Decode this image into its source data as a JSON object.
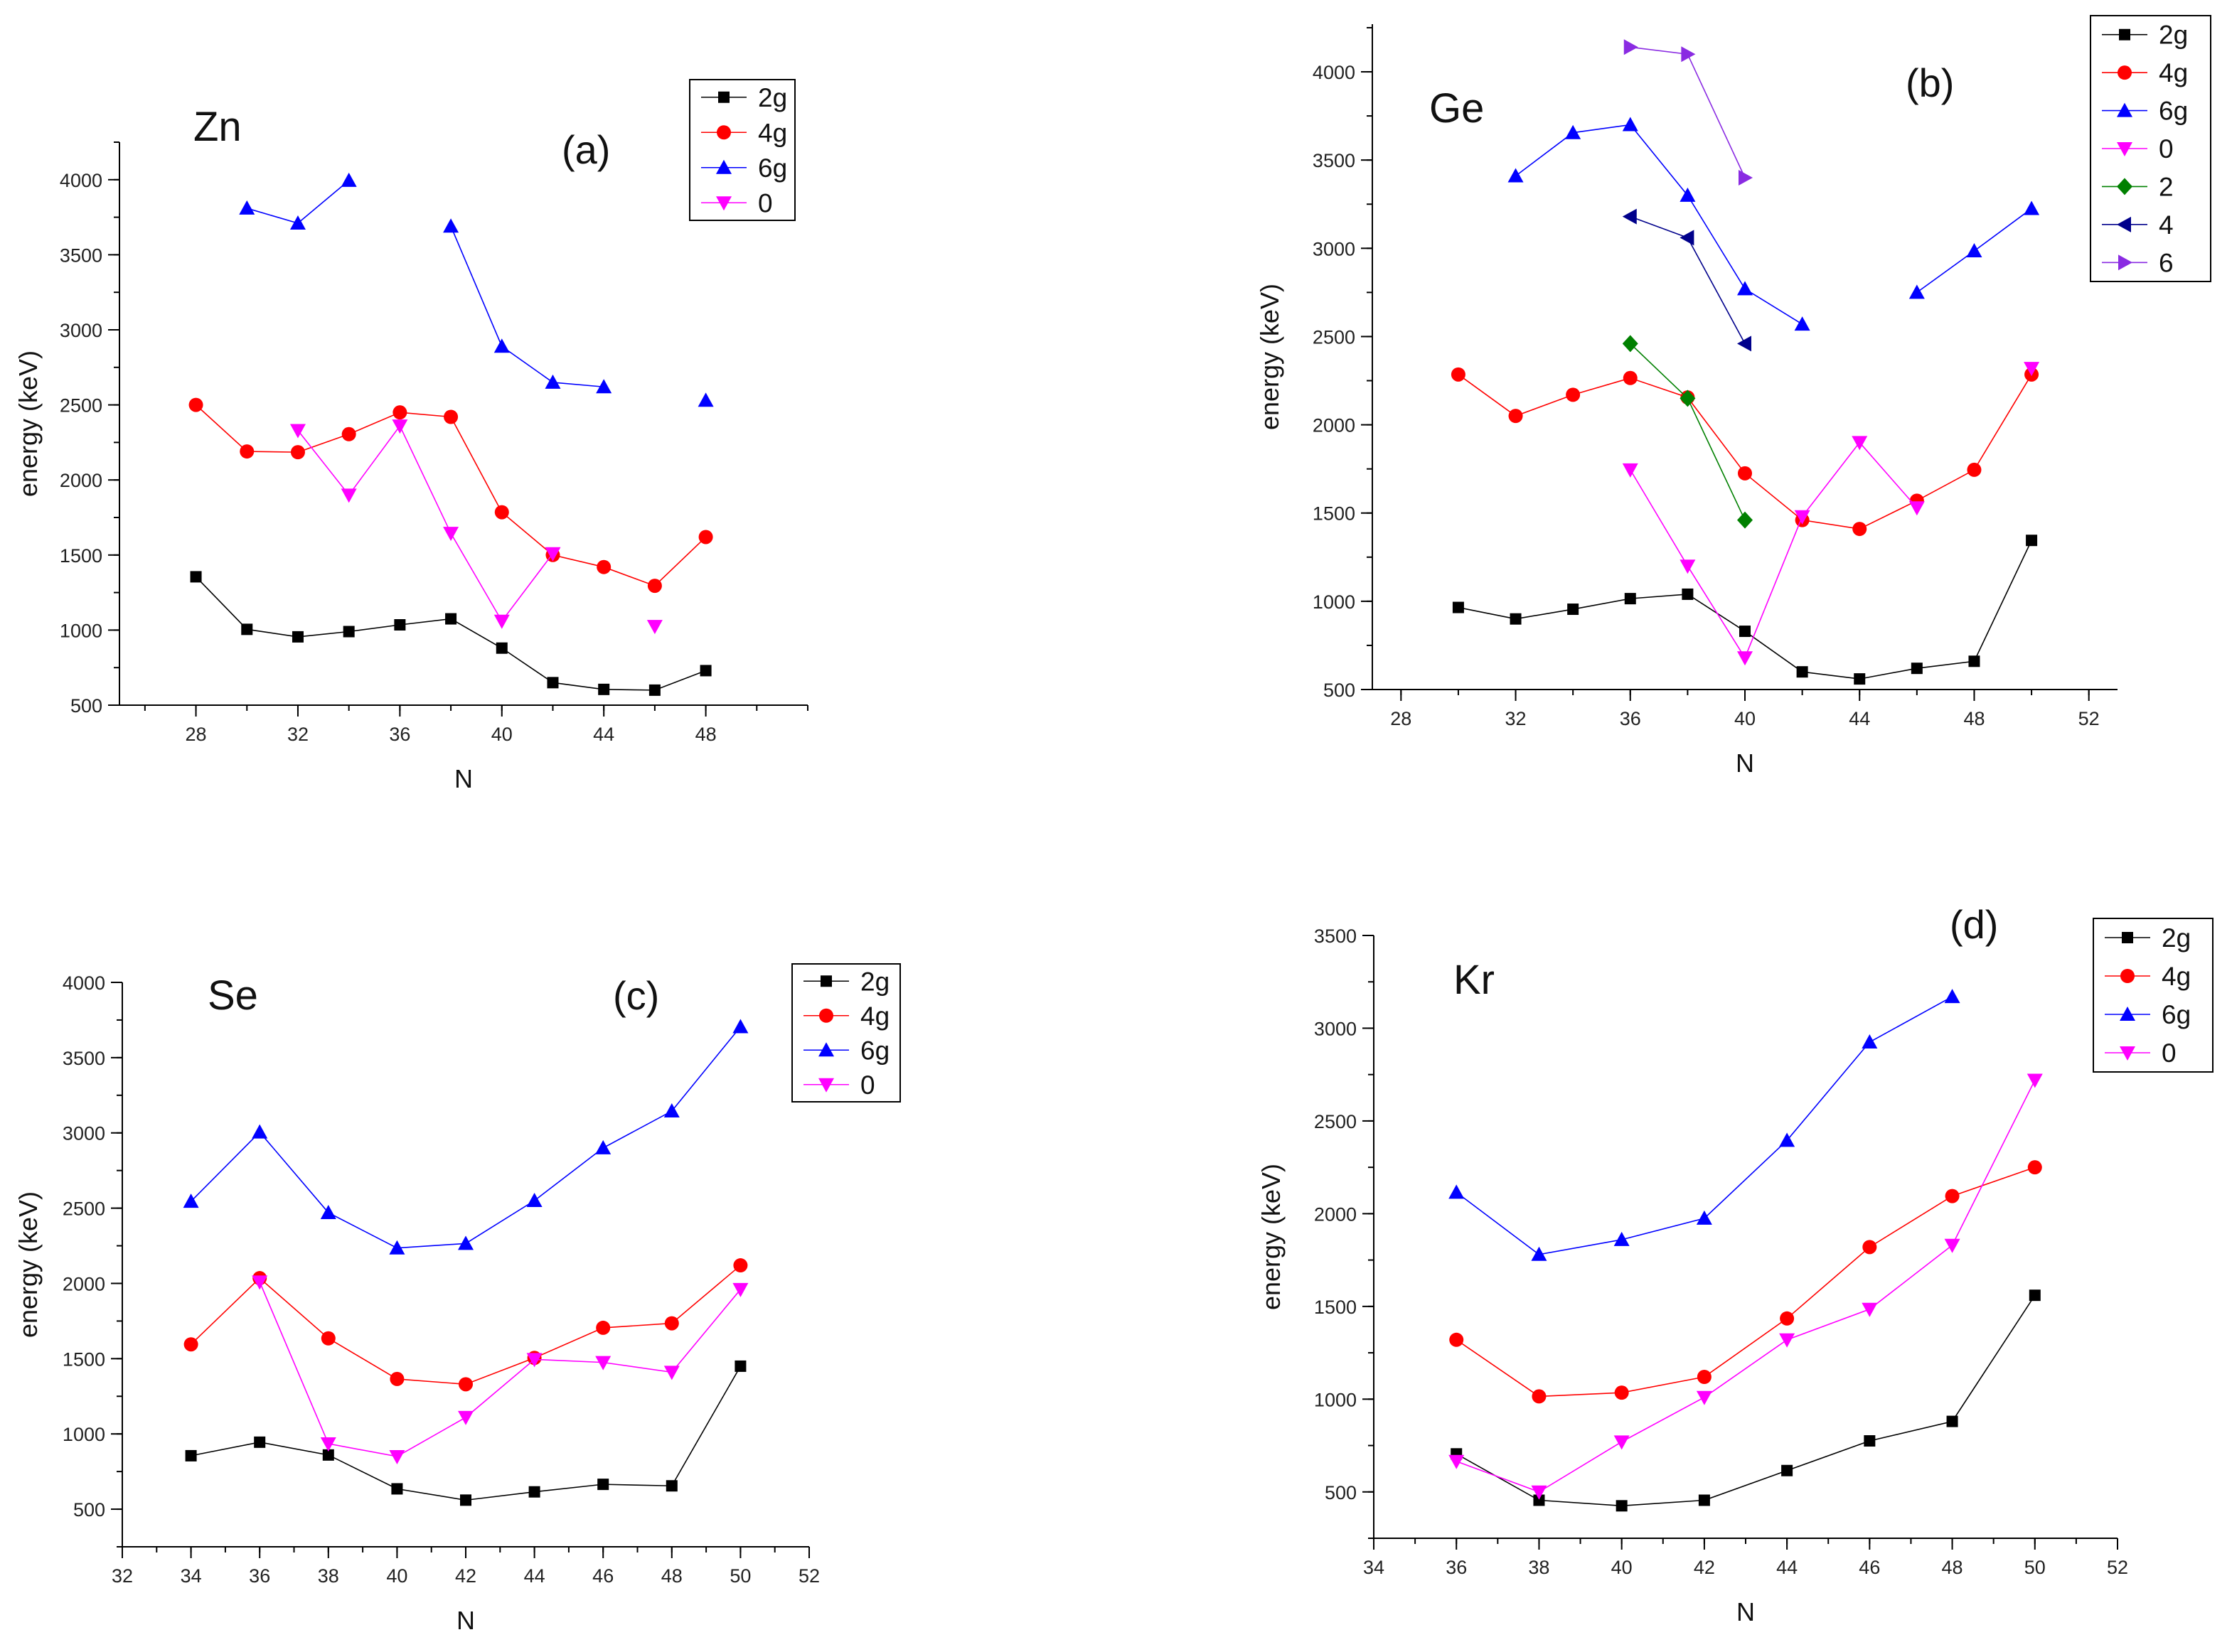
{
  "chart_data": [
    {
      "type": "line",
      "element": "Zn",
      "panel_label": "(a)",
      "xlabel": "N",
      "ylabel": "energy (keV)",
      "xlim": [
        25,
        52
      ],
      "ylim": [
        500,
        4250
      ],
      "xticks": [
        28,
        32,
        36,
        40,
        44,
        48
      ],
      "yticks": [
        500,
        1000,
        1500,
        2000,
        2500,
        3000,
        3500,
        4000
      ],
      "legend_position": "top-right",
      "series": [
        {
          "name": "2g",
          "color": "#000000",
          "marker": "square",
          "segments": [
            [
              [
                28,
                1355
              ],
              [
                30,
                1005
              ],
              [
                32,
                955
              ],
              [
                34,
                990
              ],
              [
                36,
                1035
              ],
              [
                38,
                1075
              ],
              [
                40,
                880
              ],
              [
                42,
                650
              ],
              [
                44,
                605
              ],
              [
                46,
                600
              ],
              [
                48,
                730
              ]
            ]
          ]
        },
        {
          "name": "4g",
          "color": "#ff0000",
          "marker": "circle",
          "segments": [
            [
              [
                28,
                2500
              ],
              [
                30,
                2190
              ],
              [
                32,
                2185
              ],
              [
                34,
                2305
              ],
              [
                36,
                2450
              ],
              [
                38,
                2420
              ],
              [
                40,
                1785
              ],
              [
                42,
                1500
              ],
              [
                44,
                1420
              ],
              [
                46,
                1295
              ],
              [
                48,
                1620
              ]
            ]
          ]
        },
        {
          "name": "6g",
          "color": "#0000ff",
          "marker": "triangle-up",
          "segments": [
            [
              [
                30,
                3810
              ],
              [
                32,
                3710
              ],
              [
                34,
                3995
              ]
            ],
            [
              [
                38,
                3690
              ],
              [
                40,
                2890
              ],
              [
                42,
                2650
              ],
              [
                44,
                2620
              ]
            ],
            [
              [
                48,
                2530
              ]
            ]
          ]
        },
        {
          "name": "0",
          "color": "#ff00ff",
          "marker": "triangle-down",
          "segments": [
            [
              [
                32,
                2330
              ],
              [
                34,
                1900
              ],
              [
                36,
                2360
              ],
              [
                38,
                1645
              ],
              [
                40,
                1060
              ],
              [
                42,
                1510
              ]
            ],
            [
              [
                46,
                1025
              ]
            ]
          ]
        }
      ]
    },
    {
      "type": "line",
      "element": "Ge",
      "panel_label": "(b)",
      "xlabel": "N",
      "ylabel": "energy (keV)",
      "xlim": [
        27,
        53
      ],
      "ylim": [
        500,
        4270
      ],
      "xticks": [
        28,
        32,
        36,
        40,
        44,
        48,
        52
      ],
      "yticks": [
        500,
        1000,
        1500,
        2000,
        2500,
        3000,
        3500,
        4000
      ],
      "legend_position": "top-right",
      "series": [
        {
          "name": "2g",
          "color": "#000000",
          "marker": "square",
          "segments": [
            [
              [
                30,
                965
              ],
              [
                32,
                900
              ],
              [
                34,
                955
              ],
              [
                36,
                1015
              ],
              [
                38,
                1040
              ],
              [
                40,
                830
              ],
              [
                42,
                600
              ],
              [
                44,
                560
              ],
              [
                46,
                620
              ],
              [
                48,
                660
              ],
              [
                50,
                1345
              ]
            ]
          ]
        },
        {
          "name": "4g",
          "color": "#ff0000",
          "marker": "circle",
          "segments": [
            [
              [
                30,
                2285
              ],
              [
                32,
                2050
              ],
              [
                34,
                2170
              ],
              [
                36,
                2265
              ],
              [
                38,
                2155
              ],
              [
                40,
                1725
              ],
              [
                42,
                1460
              ],
              [
                44,
                1410
              ],
              [
                46,
                1570
              ],
              [
                48,
                1745
              ],
              [
                50,
                2285
              ]
            ]
          ]
        },
        {
          "name": "6g",
          "color": "#0000ff",
          "marker": "triangle-up",
          "segments": [
            [
              [
                32,
                3410
              ],
              [
                34,
                3655
              ],
              [
                36,
                3700
              ],
              [
                38,
                3300
              ],
              [
                40,
                2770
              ],
              [
                42,
                2570
              ]
            ],
            [
              [
                46,
                2750
              ],
              [
                48,
                2985
              ],
              [
                50,
                3225
              ]
            ]
          ]
        },
        {
          "name": "0",
          "color": "#ff00ff",
          "marker": "triangle-down",
          "segments": [
            [
              [
                36,
                1745
              ],
              [
                38,
                1200
              ],
              [
                40,
                680
              ],
              [
                42,
                1480
              ],
              [
                44,
                1900
              ],
              [
                46,
                1530
              ]
            ],
            [
              [
                50,
                2320
              ]
            ]
          ]
        },
        {
          "name": "2",
          "color": "#008000",
          "marker": "diamond",
          "segments": [
            [
              [
                36,
                2460
              ],
              [
                38,
                2150
              ],
              [
                40,
                1460
              ]
            ]
          ]
        },
        {
          "name": "4",
          "color": "#00008b",
          "marker": "triangle-left",
          "segments": [
            [
              [
                36,
                3180
              ],
              [
                38,
                3060
              ],
              [
                40,
                2460
              ]
            ]
          ]
        },
        {
          "name": "6",
          "color": "#8a2be2",
          "marker": "triangle-right",
          "segments": [
            [
              [
                36,
                4140
              ],
              [
                38,
                4100
              ],
              [
                40,
                3400
              ]
            ]
          ]
        }
      ]
    },
    {
      "type": "line",
      "element": "Se",
      "panel_label": "(c)",
      "xlabel": "N",
      "ylabel": "energy (keV)",
      "xlim": [
        32,
        52
      ],
      "ylim": [
        250,
        4000
      ],
      "xticks": [
        32,
        34,
        36,
        38,
        40,
        42,
        44,
        46,
        48,
        50,
        52
      ],
      "yticks": [
        500,
        1000,
        1500,
        2000,
        2500,
        3000,
        3500,
        4000
      ],
      "legend_position": "top-right",
      "series": [
        {
          "name": "2g",
          "color": "#000000",
          "marker": "square",
          "segments": [
            [
              [
                34,
                855
              ],
              [
                36,
                945
              ],
              [
                38,
                860
              ],
              [
                40,
                635
              ],
              [
                42,
                560
              ],
              [
                44,
                615
              ],
              [
                46,
                665
              ],
              [
                48,
                655
              ],
              [
                50,
                1450
              ]
            ]
          ]
        },
        {
          "name": "4g",
          "color": "#ff0000",
          "marker": "circle",
          "segments": [
            [
              [
                34,
                1595
              ],
              [
                36,
                2035
              ],
              [
                38,
                1635
              ],
              [
                40,
                1365
              ],
              [
                42,
                1330
              ],
              [
                44,
                1505
              ],
              [
                46,
                1705
              ],
              [
                48,
                1735
              ],
              [
                50,
                2120
              ]
            ]
          ]
        },
        {
          "name": "6g",
          "color": "#0000ff",
          "marker": "triangle-up",
          "segments": [
            [
              [
                34,
                2545
              ],
              [
                36,
                3005
              ],
              [
                38,
                2470
              ],
              [
                40,
                2235
              ],
              [
                42,
                2265
              ],
              [
                44,
                2550
              ],
              [
                46,
                2900
              ],
              [
                48,
                3145
              ],
              [
                50,
                3705
              ]
            ]
          ]
        },
        {
          "name": "0",
          "color": "#ff00ff",
          "marker": "triangle-down",
          "segments": [
            [
              [
                36,
                2010
              ],
              [
                38,
                935
              ],
              [
                40,
                850
              ],
              [
                42,
                1110
              ],
              [
                44,
                1495
              ],
              [
                46,
                1475
              ],
              [
                48,
                1410
              ],
              [
                50,
                1960
              ]
            ]
          ]
        }
      ]
    },
    {
      "type": "line",
      "element": "Kr",
      "panel_label": "(d)",
      "xlabel": "N",
      "ylabel": "energy (keV)",
      "xlim": [
        34,
        52
      ],
      "ylim": [
        250,
        3500
      ],
      "xticks": [
        34,
        36,
        38,
        40,
        42,
        44,
        46,
        48,
        50,
        52
      ],
      "yticks": [
        500,
        1000,
        1500,
        2000,
        2500,
        3000,
        3500
      ],
      "legend_position": "top-right",
      "series": [
        {
          "name": "2g",
          "color": "#000000",
          "marker": "square",
          "segments": [
            [
              [
                36,
                705
              ],
              [
                38,
                455
              ],
              [
                40,
                425
              ],
              [
                42,
                455
              ],
              [
                44,
                615
              ],
              [
                46,
                775
              ],
              [
                48,
                880
              ],
              [
                50,
                1560
              ]
            ]
          ]
        },
        {
          "name": "4g",
          "color": "#ff0000",
          "marker": "circle",
          "segments": [
            [
              [
                36,
                1320
              ],
              [
                38,
                1015
              ],
              [
                40,
                1035
              ],
              [
                42,
                1120
              ],
              [
                44,
                1435
              ],
              [
                46,
                1820
              ],
              [
                48,
                2095
              ],
              [
                50,
                2250
              ]
            ]
          ]
        },
        {
          "name": "6g",
          "color": "#0000ff",
          "marker": "triangle-up",
          "segments": [
            [
              [
                36,
                2115
              ],
              [
                38,
                1780
              ],
              [
                40,
                1860
              ],
              [
                42,
                1975
              ],
              [
                44,
                2395
              ],
              [
                46,
                2925
              ],
              [
                48,
                3170
              ]
            ]
          ]
        },
        {
          "name": "0",
          "color": "#ff00ff",
          "marker": "triangle-down",
          "segments": [
            [
              [
                36,
                665
              ],
              [
                38,
                500
              ],
              [
                40,
                770
              ],
              [
                42,
                1010
              ],
              [
                44,
                1320
              ],
              [
                46,
                1485
              ],
              [
                48,
                1830
              ],
              [
                50,
                2720
              ]
            ]
          ]
        }
      ]
    }
  ]
}
